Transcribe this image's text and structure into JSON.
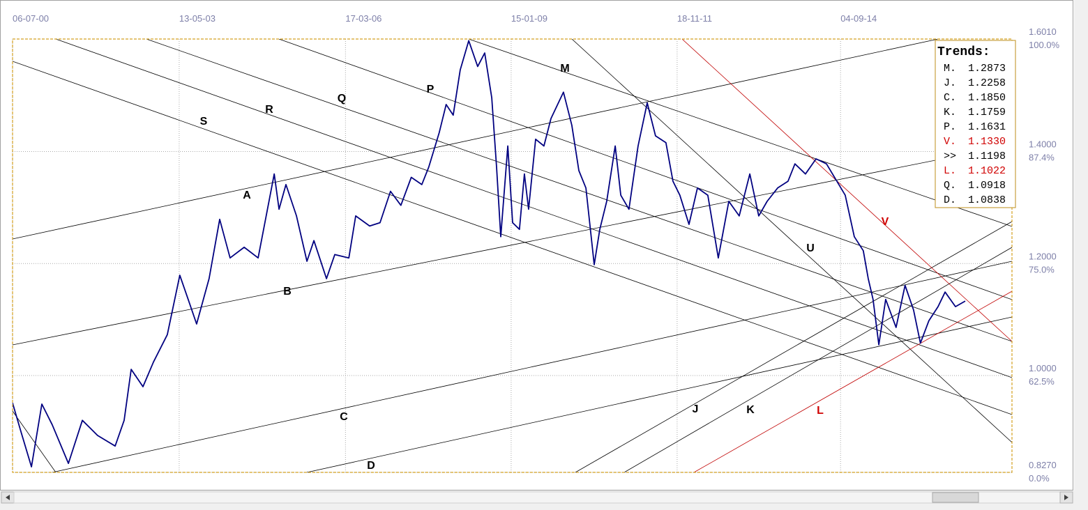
{
  "chart_data": {
    "type": "line",
    "xlim": [
      "2000-07-06",
      "2017-08-10"
    ],
    "ylim": [
      0.827,
      1.601
    ],
    "grid": true,
    "xticks": [
      {
        "value": "2000-07-06",
        "label": "06-07-00"
      },
      {
        "value": "2003-05-13",
        "label": "13-05-03"
      },
      {
        "value": "2006-03-17",
        "label": "17-03-06"
      },
      {
        "value": "2009-01-15",
        "label": "15-01-09"
      },
      {
        "value": "2011-11-18",
        "label": "18-11-11"
      },
      {
        "value": "2014-09-04",
        "label": "04-09-14"
      }
    ],
    "yticks": [
      {
        "value": 1.601,
        "label": "1.6010",
        "pct": "100.0%"
      },
      {
        "value": 1.4,
        "label": "1.4000",
        "pct": "87.4%"
      },
      {
        "value": 1.2,
        "label": "1.2000",
        "pct": "75.0%"
      },
      {
        "value": 1.0,
        "label": "1.0000",
        "pct": "62.5%"
      },
      {
        "value": 0.827,
        "label": "0.8270",
        "pct": "0.0%"
      }
    ],
    "series": [
      {
        "color": "#000080",
        "x": [
          "2000-07-06",
          "2000-08-28",
          "2000-11-01",
          "2001-01-05",
          "2001-03-11",
          "2001-06-20",
          "2001-09-15",
          "2001-12-19",
          "2002-04-08",
          "2002-06-03",
          "2002-07-17",
          "2002-09-29",
          "2002-12-03",
          "2003-02-28",
          "2003-05-17",
          "2003-07-08",
          "2003-08-30",
          "2003-11-16",
          "2004-01-21",
          "2004-03-26",
          "2004-06-22",
          "2004-09-17",
          "2004-12-27",
          "2005-01-26",
          "2005-03-10",
          "2005-05-15",
          "2005-07-19",
          "2005-09-01",
          "2005-11-18",
          "2006-01-09",
          "2006-04-07",
          "2006-05-20",
          "2006-08-15",
          "2006-10-19",
          "2006-12-23",
          "2007-02-26",
          "2007-05-02",
          "2007-07-07",
          "2007-08-19",
          "2007-10-24",
          "2007-12-06",
          "2008-01-19",
          "2008-03-03",
          "2008-04-25",
          "2008-06-20",
          "2008-08-03",
          "2008-09-16",
          "2008-10-16",
          "2008-11-11",
          "2008-12-25",
          "2009-01-24",
          "2009-03-08",
          "2009-04-08",
          "2009-05-04",
          "2009-06-17",
          "2009-08-08",
          "2009-09-21",
          "2009-12-08",
          "2010-01-29",
          "2010-03-14",
          "2010-04-27",
          "2010-06-18",
          "2010-07-23",
          "2010-09-04",
          "2010-10-27",
          "2010-12-01",
          "2011-01-21",
          "2011-03-19",
          "2011-05-15",
          "2011-07-06",
          "2011-09-09",
          "2011-10-23",
          "2011-12-05",
          "2012-01-31",
          "2012-03-24",
          "2012-05-28",
          "2012-08-01",
          "2012-10-06",
          "2012-12-10",
          "2013-02-14",
          "2013-04-11",
          "2013-06-02",
          "2013-08-07",
          "2013-10-11",
          "2013-11-23",
          "2014-01-28",
          "2014-04-04",
          "2014-06-08",
          "2014-08-12",
          "2014-10-03",
          "2014-11-29",
          "2015-01-24",
          "2015-02-24",
          "2015-03-26",
          "2015-05-01",
          "2015-06-13",
          "2015-08-17",
          "2015-10-12",
          "2015-12-04",
          "2016-01-16",
          "2016-03-09",
          "2016-05-05",
          "2016-06-18",
          "2016-08-22",
          "2016-10-22"
        ],
        "values": [
          0.951,
          0.899,
          0.837,
          0.949,
          0.912,
          0.843,
          0.92,
          0.893,
          0.874,
          0.92,
          1.011,
          0.98,
          1.024,
          1.073,
          1.179,
          1.136,
          1.092,
          1.173,
          1.279,
          1.21,
          1.229,
          1.21,
          1.36,
          1.297,
          1.341,
          1.285,
          1.204,
          1.241,
          1.173,
          1.216,
          1.21,
          1.285,
          1.267,
          1.273,
          1.329,
          1.304,
          1.354,
          1.341,
          1.372,
          1.434,
          1.484,
          1.465,
          1.546,
          1.598,
          1.552,
          1.576,
          1.496,
          1.372,
          1.248,
          1.41,
          1.273,
          1.261,
          1.36,
          1.297,
          1.422,
          1.41,
          1.459,
          1.506,
          1.447,
          1.366,
          1.335,
          1.198,
          1.261,
          1.311,
          1.41,
          1.322,
          1.297,
          1.41,
          1.487,
          1.428,
          1.416,
          1.347,
          1.322,
          1.27,
          1.335,
          1.322,
          1.21,
          1.311,
          1.285,
          1.36,
          1.285,
          1.311,
          1.335,
          1.347,
          1.378,
          1.36,
          1.387,
          1.378,
          1.347,
          1.322,
          1.248,
          1.223,
          1.173,
          1.136,
          1.055,
          1.136,
          1.086,
          1.161,
          1.117,
          1.058,
          1.098,
          1.123,
          1.149,
          1.123,
          1.133
        ]
      }
    ],
    "annotations": [
      {
        "text": "M"
      },
      {
        "text": "S"
      },
      {
        "text": "R"
      },
      {
        "text": "Q"
      },
      {
        "text": "P"
      },
      {
        "text": "A"
      },
      {
        "text": "B"
      },
      {
        "text": "C"
      },
      {
        "text": "D"
      },
      {
        "text": "J"
      },
      {
        "text": "K"
      },
      {
        "text": "L"
      },
      {
        "text": "U"
      },
      {
        "text": "V"
      }
    ],
    "trends": {
      "title": "Trends:",
      "rows": [
        {
          "label": "M.",
          "value": "1.2873"
        },
        {
          "label": "J.",
          "value": "1.2258"
        },
        {
          "label": "C.",
          "value": "1.1850"
        },
        {
          "label": "K.",
          "value": "1.1759"
        },
        {
          "label": "P.",
          "value": "1.1631"
        },
        {
          "label": "V.",
          "value": "1.1330"
        },
        {
          "label": ">>",
          "value": "1.1198"
        },
        {
          "label": "L.",
          "value": "1.1022"
        },
        {
          "label": "Q.",
          "value": "1.0918"
        },
        {
          "label": "D.",
          "value": "1.0838"
        }
      ]
    }
  }
}
